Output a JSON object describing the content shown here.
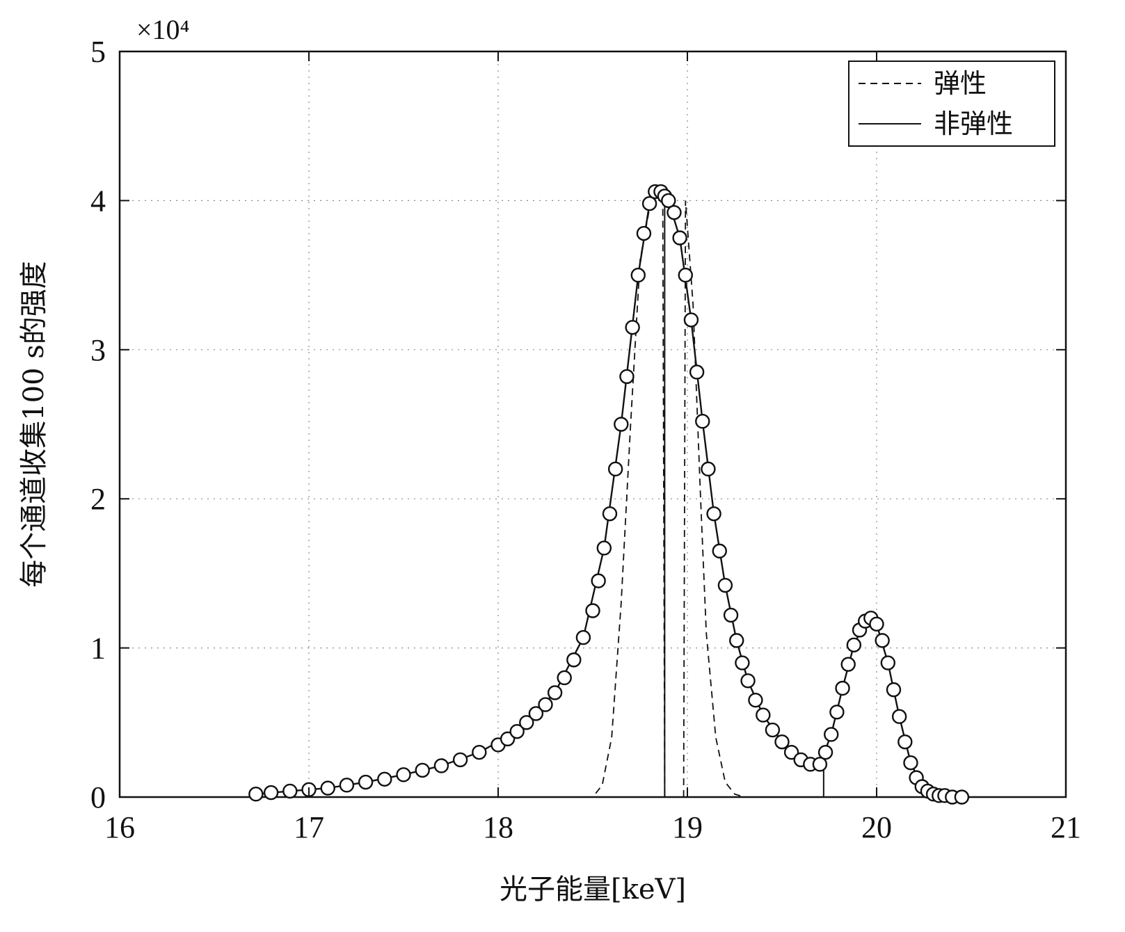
{
  "chart_data": {
    "type": "scatter",
    "title": "",
    "xlabel": "光子能量[keV]",
    "ylabel": "每个通道收集100 s的强度",
    "y_multiplier": "×10⁴",
    "xlim": [
      16,
      21
    ],
    "ylim": [
      0,
      5
    ],
    "xticks": [
      "16",
      "17",
      "18",
      "19",
      "20",
      "21"
    ],
    "yticks": [
      "0",
      "1",
      "2",
      "3",
      "4",
      "5"
    ],
    "grid": true,
    "legend_position": "top-right",
    "legend": [
      {
        "label": "弹性",
        "style": "dashed"
      },
      {
        "label": "非弹性",
        "style": "solid"
      }
    ],
    "series": [
      {
        "name": "",
        "marker": "circle",
        "x": [
          16.72,
          16.8,
          16.9,
          17.0,
          17.1,
          17.2,
          17.3,
          17.4,
          17.5,
          17.6,
          17.7,
          17.8,
          17.9,
          18.0,
          18.05,
          18.1,
          18.15,
          18.2,
          18.25,
          18.3,
          18.35,
          18.4,
          18.45,
          18.5,
          18.53,
          18.56,
          18.59,
          18.62,
          18.65,
          18.68,
          18.71,
          18.74,
          18.77,
          18.8,
          18.83,
          18.86,
          18.88,
          18.9,
          18.93,
          18.96,
          18.99,
          19.02,
          19.05,
          19.08,
          19.11,
          19.14,
          19.17,
          19.2,
          19.23,
          19.26,
          19.29,
          19.32,
          19.36,
          19.4,
          19.45,
          19.5,
          19.55,
          19.6,
          19.65,
          19.7,
          19.73,
          19.76,
          19.79,
          19.82,
          19.85,
          19.88,
          19.91,
          19.94,
          19.97,
          20.0,
          20.03,
          20.06,
          20.09,
          20.12,
          20.15,
          20.18,
          20.21,
          20.24,
          20.27,
          20.3,
          20.33,
          20.36,
          20.4,
          20.45
        ],
        "y": [
          0.02,
          0.03,
          0.04,
          0.05,
          0.06,
          0.08,
          0.1,
          0.12,
          0.15,
          0.18,
          0.21,
          0.25,
          0.3,
          0.35,
          0.39,
          0.44,
          0.5,
          0.56,
          0.62,
          0.7,
          0.8,
          0.92,
          1.07,
          1.25,
          1.45,
          1.67,
          1.9,
          2.2,
          2.5,
          2.82,
          3.15,
          3.5,
          3.78,
          3.98,
          4.06,
          4.06,
          4.03,
          4.0,
          3.92,
          3.75,
          3.5,
          3.2,
          2.85,
          2.52,
          2.2,
          1.9,
          1.65,
          1.42,
          1.22,
          1.05,
          0.9,
          0.78,
          0.65,
          0.55,
          0.45,
          0.37,
          0.3,
          0.25,
          0.22,
          0.22,
          0.3,
          0.42,
          0.57,
          0.73,
          0.89,
          1.02,
          1.12,
          1.18,
          1.2,
          1.16,
          1.05,
          0.9,
          0.72,
          0.54,
          0.37,
          0.23,
          0.13,
          0.07,
          0.04,
          0.02,
          0.01,
          0.01,
          0.0,
          0.0
        ]
      },
      {
        "name": "弹性",
        "style": "dashed",
        "x": [
          18.4,
          18.5,
          18.55,
          18.6,
          18.65,
          18.7,
          18.75,
          18.8,
          18.84,
          18.87,
          18.88
        ],
        "y": [
          0.0,
          0.0,
          0.08,
          0.4,
          1.3,
          2.5,
          3.6,
          3.95,
          4.0,
          4.0,
          0.0
        ]
      },
      {
        "name": "弹性",
        "style": "dashed",
        "x": [
          18.98,
          18.99,
          19.03,
          19.07,
          19.1,
          19.15,
          19.2,
          19.25,
          19.3
        ],
        "y": [
          0.0,
          4.0,
          3.3,
          2.0,
          1.1,
          0.4,
          0.1,
          0.02,
          0.0
        ]
      },
      {
        "name": "非弹性",
        "style": "solid",
        "x": [
          16.72,
          16.9,
          17.1,
          17.3,
          17.5,
          17.7,
          17.9,
          18.1,
          18.3,
          18.45,
          18.56,
          18.65,
          18.74,
          18.8,
          18.86,
          18.9,
          18.96,
          19.02,
          19.08,
          19.14,
          19.2,
          19.26,
          19.32,
          19.4,
          19.5,
          19.6,
          19.7,
          19.76,
          19.82,
          19.88,
          19.94,
          20.0,
          20.06,
          20.12,
          20.18,
          20.24,
          20.3,
          20.36,
          20.45
        ],
        "y": [
          0.02,
          0.04,
          0.06,
          0.1,
          0.15,
          0.21,
          0.3,
          0.44,
          0.7,
          1.07,
          1.67,
          2.5,
          3.5,
          3.98,
          4.06,
          4.0,
          3.75,
          3.2,
          2.52,
          1.9,
          1.42,
          1.05,
          0.78,
          0.55,
          0.37,
          0.25,
          0.22,
          0.42,
          0.73,
          1.02,
          1.18,
          1.16,
          0.9,
          0.54,
          0.23,
          0.07,
          0.02,
          0.01,
          0.0
        ]
      }
    ],
    "vertical_lines": [
      {
        "x": 18.88,
        "y_top": 4.05
      },
      {
        "x": 19.72,
        "y_top": 0.22
      }
    ]
  }
}
